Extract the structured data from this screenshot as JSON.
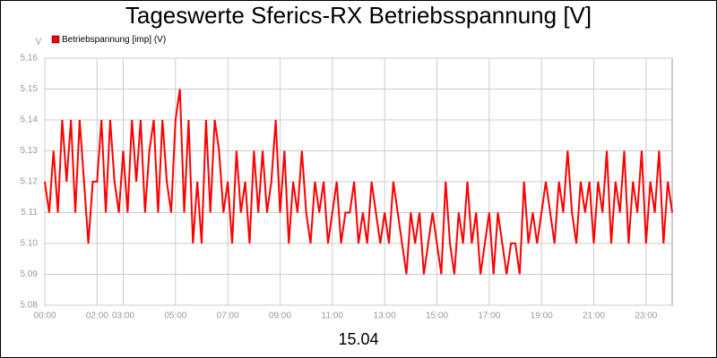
{
  "chart_data": {
    "type": "line",
    "title": "Tageswerte Sferics-RX Betriebsspannung [V]",
    "ylabel": "V",
    "xlabel": "15.04",
    "legend": "top-left",
    "grid": true,
    "xlim": [
      0,
      1440
    ],
    "xticks": [
      {
        "value": 0,
        "label": "00:00"
      },
      {
        "value": 120,
        "label": "02:00"
      },
      {
        "value": 180,
        "label": "03:00"
      },
      {
        "value": 300,
        "label": "05:00"
      },
      {
        "value": 420,
        "label": "07:00"
      },
      {
        "value": 540,
        "label": "09:00"
      },
      {
        "value": 660,
        "label": "11:00"
      },
      {
        "value": 780,
        "label": "13:00"
      },
      {
        "value": 900,
        "label": "15:00"
      },
      {
        "value": 1020,
        "label": "17:00"
      },
      {
        "value": 1140,
        "label": "19:00"
      },
      {
        "value": 1260,
        "label": "21:00"
      },
      {
        "value": 1380,
        "label": "23:00"
      }
    ],
    "ylim": [
      5.08,
      5.16
    ],
    "yticks": [
      5.08,
      5.09,
      {
        "value": 5.1,
        "label": "5.10"
      },
      5.11,
      5.12,
      5.13,
      5.14,
      5.15,
      5.16
    ],
    "x": [
      0,
      10,
      20,
      30,
      40,
      50,
      60,
      70,
      80,
      90,
      100,
      110,
      120,
      130,
      140,
      150,
      160,
      170,
      180,
      190,
      200,
      210,
      220,
      230,
      240,
      250,
      260,
      270,
      280,
      290,
      300,
      310,
      320,
      330,
      340,
      350,
      360,
      370,
      380,
      390,
      400,
      410,
      420,
      430,
      440,
      450,
      460,
      470,
      480,
      490,
      500,
      510,
      520,
      530,
      540,
      550,
      560,
      570,
      580,
      590,
      600,
      610,
      620,
      630,
      640,
      650,
      660,
      670,
      680,
      690,
      700,
      710,
      720,
      730,
      740,
      750,
      760,
      770,
      780,
      790,
      800,
      810,
      820,
      830,
      840,
      850,
      860,
      870,
      880,
      890,
      900,
      910,
      920,
      930,
      940,
      950,
      960,
      970,
      980,
      990,
      1000,
      1010,
      1020,
      1030,
      1040,
      1050,
      1060,
      1070,
      1080,
      1090,
      1100,
      1110,
      1120,
      1130,
      1140,
      1150,
      1160,
      1170,
      1180,
      1190,
      1200,
      1210,
      1220,
      1230,
      1240,
      1250,
      1260,
      1270,
      1280,
      1290,
      1300,
      1310,
      1320,
      1330,
      1340,
      1350,
      1360,
      1370,
      1380,
      1390,
      1400,
      1410,
      1420,
      1430,
      1440
    ],
    "series": [
      {
        "name": "Betriebspannung [imp] (V)",
        "color": "#ff0000",
        "values": [
          5.12,
          5.11,
          5.13,
          5.11,
          5.14,
          5.12,
          5.14,
          5.11,
          5.14,
          5.12,
          5.1,
          5.12,
          5.12,
          5.14,
          5.11,
          5.14,
          5.12,
          5.11,
          5.13,
          5.11,
          5.14,
          5.12,
          5.14,
          5.11,
          5.13,
          5.14,
          5.11,
          5.14,
          5.12,
          5.11,
          5.14,
          5.15,
          5.11,
          5.14,
          5.1,
          5.12,
          5.1,
          5.14,
          5.11,
          5.14,
          5.13,
          5.11,
          5.12,
          5.1,
          5.13,
          5.11,
          5.12,
          5.1,
          5.13,
          5.11,
          5.13,
          5.11,
          5.12,
          5.14,
          5.11,
          5.13,
          5.1,
          5.12,
          5.11,
          5.13,
          5.11,
          5.1,
          5.12,
          5.11,
          5.12,
          5.1,
          5.11,
          5.12,
          5.1,
          5.11,
          5.11,
          5.12,
          5.1,
          5.11,
          5.1,
          5.12,
          5.11,
          5.1,
          5.11,
          5.1,
          5.12,
          5.11,
          5.1,
          5.09,
          5.11,
          5.1,
          5.11,
          5.09,
          5.1,
          5.11,
          5.1,
          5.09,
          5.12,
          5.1,
          5.09,
          5.11,
          5.1,
          5.12,
          5.1,
          5.11,
          5.09,
          5.1,
          5.11,
          5.09,
          5.11,
          5.1,
          5.09,
          5.1,
          5.1,
          5.09,
          5.12,
          5.1,
          5.11,
          5.1,
          5.11,
          5.12,
          5.11,
          5.1,
          5.12,
          5.11,
          5.13,
          5.11,
          5.1,
          5.12,
          5.11,
          5.12,
          5.1,
          5.12,
          5.11,
          5.13,
          5.1,
          5.12,
          5.11,
          5.13,
          5.1,
          5.12,
          5.11,
          5.13,
          5.1,
          5.12,
          5.11,
          5.13,
          5.1,
          5.12,
          5.11
        ]
      }
    ]
  }
}
